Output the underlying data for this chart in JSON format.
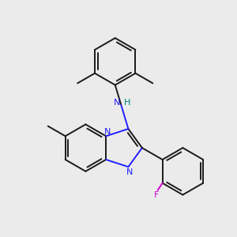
{
  "bg_color": "#ebebeb",
  "bond_color": "#1a1a1a",
  "n_color": "#2020ff",
  "f_color": "#d400d4",
  "h_color": "#008080",
  "line_width": 1.4,
  "figsize": [
    3.0,
    3.0
  ],
  "dpi": 100,
  "xlim": [
    -4.5,
    5.5
  ],
  "ylim": [
    -4.5,
    5.0
  ]
}
